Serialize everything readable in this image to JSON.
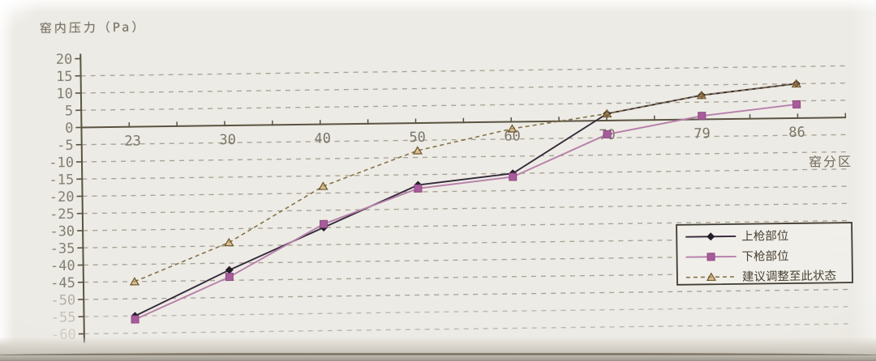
{
  "chart": {
    "title": "窑内压力（Pa）",
    "x_axis_label": "窑分区"
  },
  "chart_data": {
    "type": "line",
    "title": "窑内压力（Pa）",
    "xlabel": "窑分区",
    "ylabel": "窑内压力（Pa）",
    "categories": [
      "23",
      "30",
      "40",
      "50",
      "60",
      "70",
      "79",
      "86"
    ],
    "series": [
      {
        "name": "上枪部位",
        "marker": "diamond",
        "line_style": "solid",
        "color": "#342a3a",
        "marker_color": "#241c28",
        "values": [
          -55,
          -42,
          -30,
          -18,
          -15,
          2,
          7,
          10
        ]
      },
      {
        "name": "下枪部位",
        "marker": "square",
        "line_style": "solid",
        "color": "#b77fab",
        "marker_color": "#a85c9c",
        "values": [
          -56,
          -44,
          -29,
          -19,
          -16,
          -4,
          1,
          4
        ]
      },
      {
        "name": "建议调整至此状态",
        "marker": "triangle",
        "line_style": "dashed",
        "color": "#857348",
        "marker_color": "#cf9f55",
        "values": [
          -45,
          -34,
          -18,
          -8,
          -2,
          2,
          7,
          10
        ]
      }
    ],
    "ylim": [
      -60,
      20
    ],
    "ytick_step": 5,
    "grid": true,
    "gridline_style": "dashed",
    "legend_position": "middle-right",
    "legend_labels": [
      "上枪部位",
      "下枪部位",
      "建议调整至此状态"
    ]
  },
  "colors": {
    "background": "#ebe8e2",
    "gridline": "#a29b8d",
    "axis": "#5a5342",
    "tick_label": "#847e71",
    "title_text": "#756f60",
    "legend_border": "#3f3a30",
    "legend_text": "#4a4336"
  }
}
